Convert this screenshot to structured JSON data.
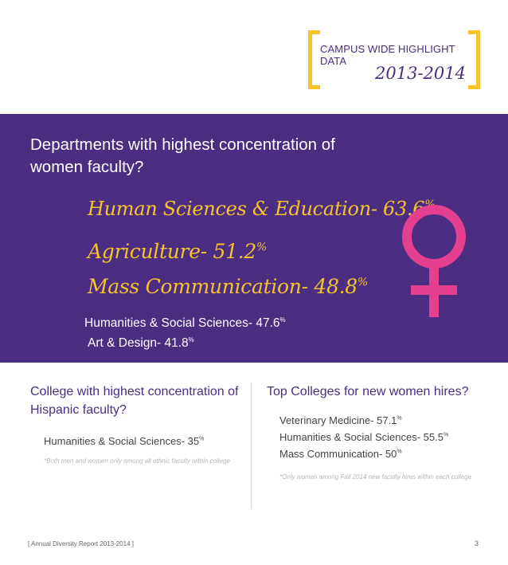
{
  "header": {
    "label": "CAMPUS WIDE HIGHLIGHT DATA",
    "year": "2013-2014"
  },
  "panel": {
    "question": "Departments with highest concentration of women faculty?",
    "highlights": [
      {
        "text": "Human Sciences & Education- 63.6",
        "unit": "%"
      },
      {
        "text": "Agriculture- 51.2",
        "unit": "%"
      },
      {
        "text": "Mass Communication- 48.8",
        "unit": "%"
      }
    ],
    "others": [
      {
        "text": "Humanities & Social Sciences- 47.6",
        "unit": "%"
      },
      {
        "text": "Art & Design- 41.8",
        "unit": "%"
      }
    ],
    "icon": "female-symbol-icon",
    "icon_color": "#e4408f"
  },
  "hispanic": {
    "title": "College with highest concentration of Hispanic faculty?",
    "item": {
      "text": "Humanities & Social Sciences- 35",
      "unit": "%"
    },
    "note": "*Both men and women only among all ethnic faculty within college"
  },
  "hires": {
    "title": "Top Colleges for new women hires?",
    "items": [
      {
        "text": "Veterinary Medicine- 57.1",
        "unit": "%"
      },
      {
        "text": "Humanities & Social Sciences- 55.5",
        "unit": "%"
      },
      {
        "text": "Mass Communication- 50",
        "unit": "%"
      }
    ],
    "note": "*Only women among Fall 2014 new faculty hires within each college"
  },
  "footer": {
    "report": "[ Annual Diversity Report 2013-2014 ]",
    "page": "3"
  },
  "colors": {
    "purple": "#4b2d82",
    "gold": "#f6c32b",
    "pink": "#e4408f"
  }
}
